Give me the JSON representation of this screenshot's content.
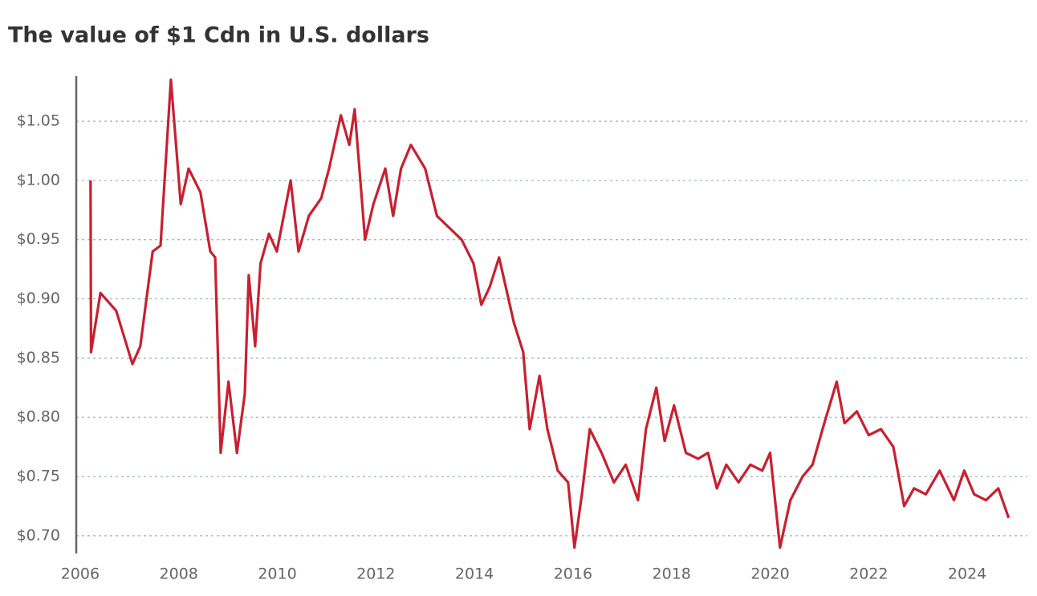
{
  "chart_data": {
    "type": "line",
    "title": "The value of $1 Cdn in U.S. dollars",
    "color": "#c8202f",
    "grid": true,
    "x": [
      2006.21,
      2006.22,
      2006.41,
      2006.73,
      2007.06,
      2007.22,
      2007.47,
      2007.63,
      2007.84,
      2008.04,
      2008.2,
      2008.44,
      2008.64,
      2008.74,
      2008.85,
      2009.01,
      2009.18,
      2009.34,
      2009.42,
      2009.55,
      2009.66,
      2009.83,
      2009.99,
      2010.27,
      2010.43,
      2010.64,
      2010.89,
      2011.05,
      2011.29,
      2011.46,
      2011.57,
      2011.78,
      2011.95,
      2012.19,
      2012.35,
      2012.51,
      2012.71,
      2013.0,
      2013.24,
      2013.49,
      2013.74,
      2013.98,
      2014.14,
      2014.31,
      2014.5,
      2014.8,
      2014.99,
      2015.12,
      2015.32,
      2015.48,
      2015.69,
      2015.9,
      2016.03,
      2016.18,
      2016.34,
      2016.58,
      2016.83,
      2017.07,
      2017.32,
      2017.48,
      2017.69,
      2017.86,
      2018.05,
      2018.29,
      2018.54,
      2018.74,
      2018.92,
      2019.11,
      2019.36,
      2019.6,
      2019.84,
      2020.0,
      2020.2,
      2020.41,
      2020.66,
      2020.86,
      2021.1,
      2021.35,
      2021.51,
      2021.76,
      2022.0,
      2022.25,
      2022.5,
      2022.72,
      2022.92,
      2023.16,
      2023.44,
      2023.73,
      2023.94,
      2024.14,
      2024.38,
      2024.63,
      2024.84
    ],
    "values": [
      1.0,
      0.855,
      0.905,
      0.89,
      0.845,
      0.86,
      0.94,
      0.945,
      1.085,
      0.98,
      1.01,
      0.99,
      0.94,
      0.935,
      0.77,
      0.83,
      0.77,
      0.82,
      0.92,
      0.86,
      0.93,
      0.955,
      0.94,
      1.0,
      0.94,
      0.97,
      0.985,
      1.01,
      1.055,
      1.03,
      1.06,
      0.95,
      0.98,
      1.01,
      0.97,
      1.01,
      1.03,
      1.01,
      0.97,
      0.96,
      0.95,
      0.93,
      0.895,
      0.91,
      0.935,
      0.88,
      0.855,
      0.79,
      0.835,
      0.79,
      0.755,
      0.745,
      0.69,
      0.735,
      0.79,
      0.77,
      0.745,
      0.76,
      0.73,
      0.79,
      0.825,
      0.78,
      0.81,
      0.77,
      0.765,
      0.77,
      0.74,
      0.76,
      0.745,
      0.76,
      0.755,
      0.77,
      0.69,
      0.73,
      0.75,
      0.76,
      0.795,
      0.83,
      0.795,
      0.805,
      0.785,
      0.79,
      0.775,
      0.725,
      0.74,
      0.735,
      0.755,
      0.73,
      0.755,
      0.735,
      0.73,
      0.74,
      0.715
    ],
    "xlim": [
      2005.92,
      2025.22
    ],
    "xticks": [
      2006,
      2008,
      2010,
      2012,
      2014,
      2016,
      2018,
      2020,
      2022,
      2024
    ],
    "ylim": [
      0.685,
      1.088
    ],
    "yticks": [
      {
        "value": 0.7,
        "label": "$0.70"
      },
      {
        "value": 0.75,
        "label": "$0.75"
      },
      {
        "value": 0.8,
        "label": "$0.80"
      },
      {
        "value": 0.85,
        "label": "$0.85"
      },
      {
        "value": 0.9,
        "label": "$0.90"
      },
      {
        "value": 0.95,
        "label": "$0.95"
      },
      {
        "value": 1.0,
        "label": "$1.00"
      },
      {
        "value": 1.05,
        "label": "$1.05"
      }
    ]
  }
}
